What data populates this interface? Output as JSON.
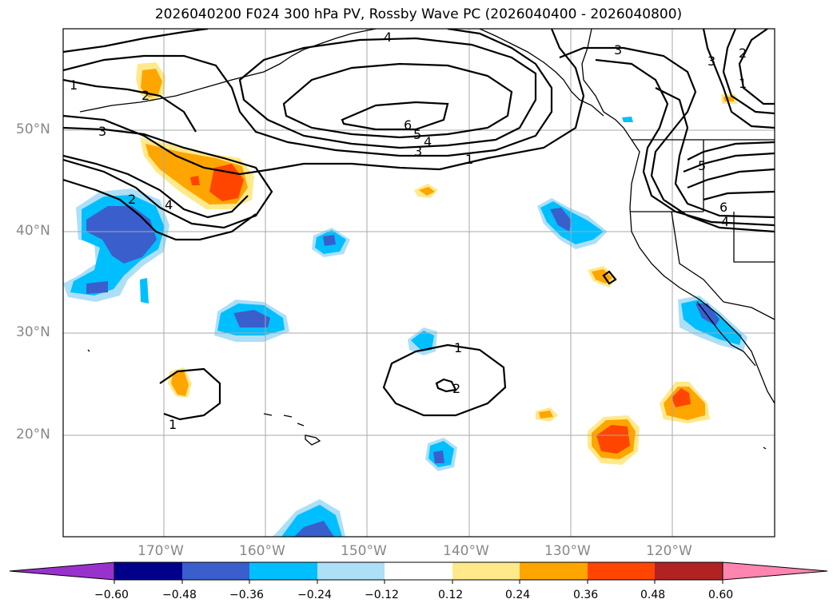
{
  "title": "2026040200 F024 300 hPa PV, Rossby Wave PC (2026040400 - 2026040800)",
  "latitude_labels": [
    "50°N",
    "40°N",
    "30°N",
    "20°N"
  ],
  "longitude_labels": [
    "170°W",
    "160°W",
    "150°W",
    "140°W",
    "130°W",
    "120°W"
  ],
  "colorbar": {
    "ticks": [
      "−0.60",
      "−0.48",
      "−0.36",
      "−0.24",
      "−0.12",
      "0.12",
      "0.24",
      "0.36",
      "0.48",
      "0.60"
    ],
    "colors": [
      "#9932CC",
      "#00008B",
      "#3A5FCD",
      "#00BFFF",
      "#ADDFF7",
      "#FFFFFF",
      "#FFE98A",
      "#FFA500",
      "#FF4500",
      "#B22222",
      "#FF85B0"
    ]
  },
  "contour_labels": [
    "1",
    "2",
    "3",
    "4",
    "5",
    "6"
  ]
}
